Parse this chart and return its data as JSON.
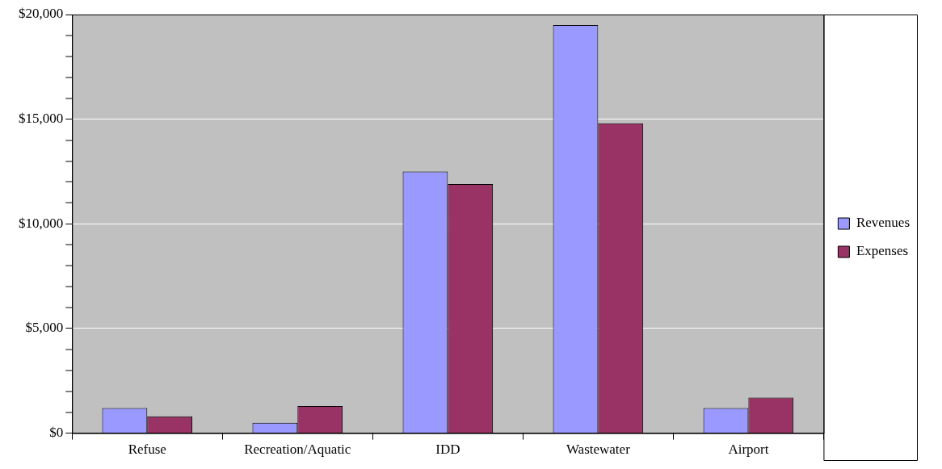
{
  "chart_data": {
    "type": "bar",
    "categories": [
      "Refuse",
      "Recreation/Aquatic",
      "IDD",
      "Wastewater",
      "Airport"
    ],
    "series": [
      {
        "name": "Revenues",
        "color": "#9999ff",
        "values": [
          1200,
          500,
          12500,
          19500,
          1200
        ]
      },
      {
        "name": "Expenses",
        "color": "#993366",
        "values": [
          800,
          1300,
          11900,
          14800,
          1700
        ]
      }
    ],
    "ylim": [
      0,
      20000
    ],
    "yticks": [
      {
        "value": 0,
        "label": "$0"
      },
      {
        "value": 1000,
        "label": null
      },
      {
        "value": 2000,
        "label": null
      },
      {
        "value": 3000,
        "label": null
      },
      {
        "value": 4000,
        "label": null
      },
      {
        "value": 5000,
        "label": "$5,000"
      },
      {
        "value": 6000,
        "label": null
      },
      {
        "value": 7000,
        "label": null
      },
      {
        "value": 8000,
        "label": null
      },
      {
        "value": 9000,
        "label": null
      },
      {
        "value": 10000,
        "label": "$10,000"
      },
      {
        "value": 11000,
        "label": null
      },
      {
        "value": 12000,
        "label": null
      },
      {
        "value": 13000,
        "label": null
      },
      {
        "value": 14000,
        "label": null
      },
      {
        "value": 15000,
        "label": "$15,000"
      },
      {
        "value": 16000,
        "label": null
      },
      {
        "value": 17000,
        "label": null
      },
      {
        "value": 18000,
        "label": null
      },
      {
        "value": 19000,
        "label": null
      },
      {
        "value": 20000,
        "label": "$20,000"
      }
    ],
    "grid": "y",
    "legend": "right"
  }
}
